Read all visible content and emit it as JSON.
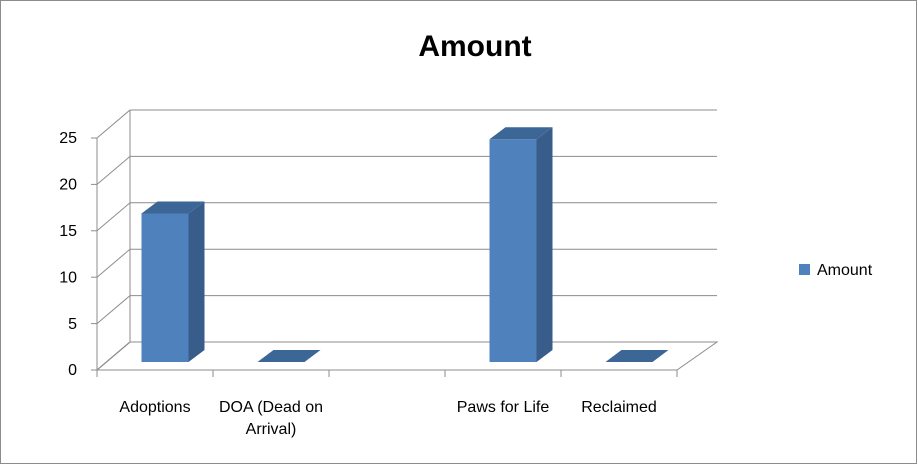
{
  "chart_data": {
    "type": "bar3d",
    "title": "Amount",
    "categories": [
      "Adoptions",
      "DOA (Dead on Arrival)",
      null,
      "Paws for Life",
      "Reclaimed"
    ],
    "series": [
      {
        "name": "Amount",
        "color": "#4f81bd",
        "values": [
          16,
          0,
          null,
          24,
          0
        ]
      }
    ],
    "ylim": [
      0,
      25
    ],
    "yticks": [
      0,
      5,
      10,
      15,
      20,
      25
    ],
    "grid": true,
    "legend": "right"
  }
}
